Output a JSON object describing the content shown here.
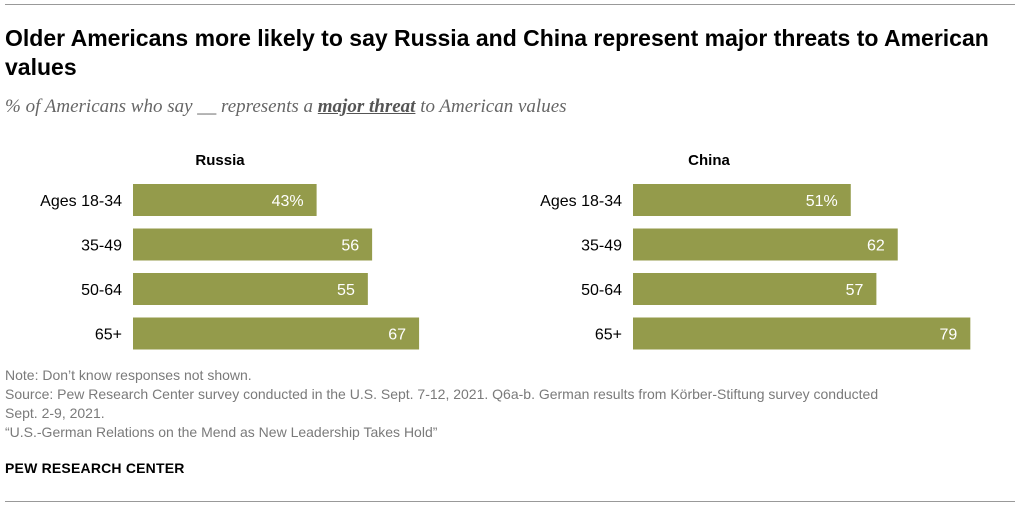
{
  "title": "Older Americans more likely to say Russia and China represent major threats to American values",
  "subtitle": {
    "before": "% of Americans who say __ represents a ",
    "emphasis": "major threat",
    "after": " to American values"
  },
  "chart_data": [
    {
      "type": "bar",
      "orientation": "horizontal",
      "title": "Russia",
      "categories": [
        "Ages 18-34",
        "35-49",
        "50-64",
        "65+"
      ],
      "values": [
        43,
        56,
        55,
        67
      ],
      "value_labels": [
        "43%",
        "56",
        "55",
        "67"
      ],
      "color": "#949b4b"
    },
    {
      "type": "bar",
      "orientation": "horizontal",
      "title": "China",
      "categories": [
        "Ages 18-34",
        "35-49",
        "50-64",
        "65+"
      ],
      "values": [
        51,
        62,
        57,
        79
      ],
      "value_labels": [
        "51%",
        "62",
        "57",
        "79"
      ],
      "color": "#949b4b"
    }
  ],
  "notes": {
    "note": "Note: Don’t know responses not shown.",
    "source_line1": "Source: Pew Research Center survey conducted in the U.S. Sept. 7-12, 2021. Q6a-b. German results from Körber-Stiftung survey conducted",
    "source_line2": "Sept. 2-9, 2021.",
    "report": "“U.S.-German Relations on the Mend as New Leadership Takes Hold”"
  },
  "brand": "PEW RESEARCH CENTER"
}
